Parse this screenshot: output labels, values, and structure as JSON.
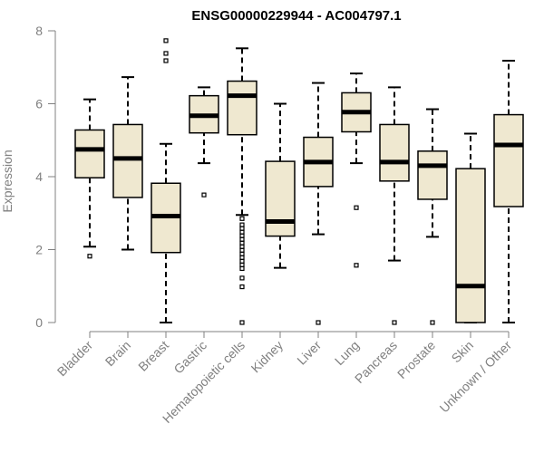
{
  "chart_data": {
    "type": "boxplot",
    "title": "ENSG00000229944 - AC004797.1",
    "xlabel": "",
    "ylabel": "Expression",
    "ylim": [
      0,
      8
    ],
    "yticks": [
      0,
      2,
      4,
      6,
      8
    ],
    "box_fill": "#efe8d0",
    "categories": [
      "Bladder",
      "Brain",
      "Breast",
      "Gastric",
      "Hematopoietic cells",
      "Kidney",
      "Liver",
      "Lung",
      "Pancreas",
      "Prostate",
      "Skin",
      "Unknown / Other"
    ],
    "series": [
      {
        "name": "Bladder",
        "min": 2.08,
        "q1": 3.97,
        "median": 4.75,
        "q3": 5.28,
        "max": 6.12,
        "outliers": [
          1.82
        ]
      },
      {
        "name": "Brain",
        "min": 2.0,
        "q1": 3.43,
        "median": 4.5,
        "q3": 5.43,
        "max": 6.73,
        "outliers": []
      },
      {
        "name": "Breast",
        "min": 0.0,
        "q1": 1.92,
        "median": 2.92,
        "q3": 3.82,
        "max": 4.9,
        "outliers": [
          7.18,
          7.38,
          7.73
        ]
      },
      {
        "name": "Gastric",
        "min": 4.37,
        "q1": 5.2,
        "median": 5.67,
        "q3": 6.22,
        "max": 6.45,
        "outliers": [
          3.5
        ]
      },
      {
        "name": "Hematopoietic cells",
        "min": 2.95,
        "q1": 5.15,
        "median": 6.22,
        "q3": 6.62,
        "max": 7.52,
        "outliers": [
          0.0,
          0.98,
          1.22,
          1.48,
          1.58,
          1.68,
          1.78,
          1.88,
          1.98,
          2.08,
          2.18,
          2.28,
          2.38,
          2.48,
          2.58,
          2.68,
          2.85
        ]
      },
      {
        "name": "Kidney",
        "min": 1.5,
        "q1": 2.37,
        "median": 2.77,
        "q3": 4.42,
        "max": 6.0,
        "outliers": []
      },
      {
        "name": "Liver",
        "min": 2.42,
        "q1": 3.73,
        "median": 4.4,
        "q3": 5.08,
        "max": 6.57,
        "outliers": [
          0.0
        ]
      },
      {
        "name": "Lung",
        "min": 4.37,
        "q1": 5.23,
        "median": 5.77,
        "q3": 6.3,
        "max": 6.83,
        "outliers": [
          3.15,
          1.57
        ]
      },
      {
        "name": "Pancreas",
        "min": 1.7,
        "q1": 3.88,
        "median": 4.4,
        "q3": 5.43,
        "max": 6.45,
        "outliers": [
          0.0
        ]
      },
      {
        "name": "Prostate",
        "min": 2.35,
        "q1": 3.38,
        "median": 4.3,
        "q3": 4.7,
        "max": 5.85,
        "outliers": [
          0.0
        ]
      },
      {
        "name": "Skin",
        "min": 0.0,
        "q1": 0.0,
        "median": 1.0,
        "q3": 4.22,
        "max": 5.18,
        "outliers": []
      },
      {
        "name": "Unknown / Other",
        "min": 0.0,
        "q1": 3.18,
        "median": 4.87,
        "q3": 5.7,
        "max": 7.18,
        "outliers": []
      }
    ]
  }
}
